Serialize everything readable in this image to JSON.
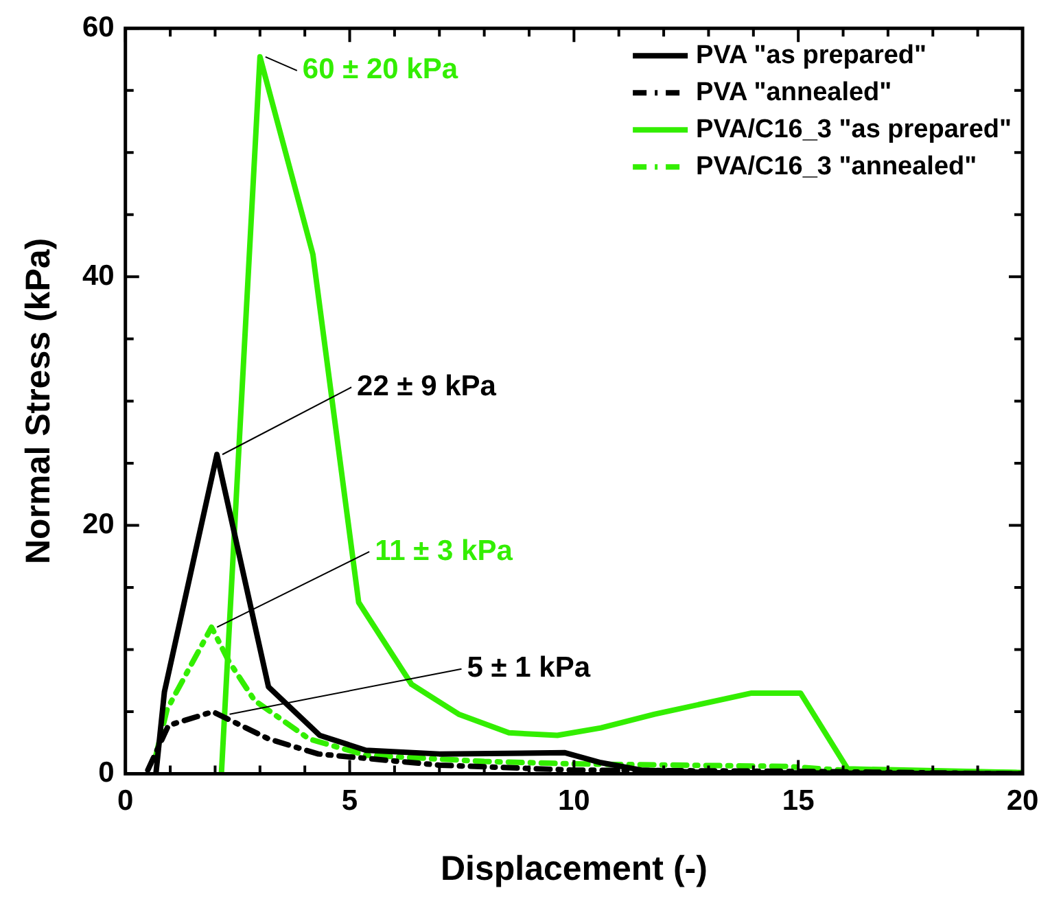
{
  "chart_data": {
    "type": "line",
    "xlabel": "Displacement (-)",
    "ylabel": "Normal Stress (kPa)",
    "xlim": [
      0,
      20
    ],
    "xticks": [
      0,
      {
        "value": 1,
        "label": null
      },
      {
        "value": 2,
        "label": null
      },
      {
        "value": 3,
        "label": null
      },
      {
        "value": 4,
        "label": null
      },
      5,
      {
        "value": 6,
        "label": null
      },
      {
        "value": 7,
        "label": null
      },
      {
        "value": 8,
        "label": null
      },
      {
        "value": 9,
        "label": null
      },
      10,
      {
        "value": 11,
        "label": null
      },
      {
        "value": 12,
        "label": null
      },
      {
        "value": 13,
        "label": null
      },
      {
        "value": 14,
        "label": null
      },
      15,
      {
        "value": 16,
        "label": null
      },
      {
        "value": 17,
        "label": null
      },
      {
        "value": 18,
        "label": null
      },
      {
        "value": 19,
        "label": null
      },
      20
    ],
    "ylim": [
      0,
      60
    ],
    "yticks": [
      0,
      {
        "value": 5,
        "label": null
      },
      {
        "value": 10,
        "label": null
      },
      {
        "value": 15,
        "label": null
      },
      20,
      {
        "value": 25,
        "label": null
      },
      {
        "value": 30,
        "label": null
      },
      {
        "value": 35,
        "label": null
      },
      40,
      {
        "value": 45,
        "label": null
      },
      {
        "value": 50,
        "label": null
      },
      {
        "value": 55,
        "label": null
      },
      60
    ],
    "legend": "top right",
    "marker": "none",
    "grid": false,
    "series": [
      {
        "name": "PVA \"as prepared\"",
        "color": "#000000",
        "line_style": "solid",
        "x": [
          0.68,
          0.87,
          2.04,
          3.19,
          4.33,
          5.36,
          7,
          9.8,
          10.6,
          11.5,
          13,
          20
        ],
        "values": [
          0,
          6.6,
          25.7,
          7,
          3.1,
          1.9,
          1.6,
          1.7,
          0.9,
          0.3,
          0.1,
          0
        ]
      },
      {
        "name": "PVA \"annealed\"",
        "color": "#000000",
        "line_style": "dashdot",
        "x": [
          0.5,
          0.96,
          1.95,
          3.2,
          4.3,
          7,
          10,
          15,
          20
        ],
        "values": [
          0.3,
          3.9,
          5,
          2.8,
          1.6,
          0.7,
          0.3,
          0.2,
          0
        ]
      },
      {
        "name": "PVA/C16_3 \"as prepared\"",
        "color": "#33ee00",
        "line_style": "solid",
        "x": [
          2.14,
          3,
          4.18,
          5.2,
          6.38,
          7.43,
          8.55,
          9.63,
          10.6,
          11.8,
          13.96,
          15.05,
          16.1,
          20
        ],
        "values": [
          0,
          57.7,
          41.8,
          13.8,
          7.2,
          4.8,
          3.3,
          3.1,
          3.7,
          4.8,
          6.5,
          6.5,
          0.4,
          0.1
        ]
      },
      {
        "name": "PVA/C16_3 \"annealed\"",
        "color": "#33ee00",
        "line_style": "dashdot",
        "x": [
          0.68,
          0.93,
          1.92,
          2.3,
          2.88,
          4.1,
          5.36,
          8,
          10,
          14.7,
          16,
          20
        ],
        "values": [
          1.5,
          5.2,
          11.8,
          9.1,
          5.9,
          2.8,
          1.5,
          1,
          0.8,
          0.6,
          0.3,
          0.1
        ]
      }
    ],
    "annotations": [
      {
        "text": "60 ± 20 kPa",
        "x": 3,
        "y": 57.7
      },
      {
        "text": "22 ± 9 kPa",
        "x": 2.04,
        "y": 25.7
      },
      {
        "text": "11 ± 3 kPa",
        "x": 1.92,
        "y": 11.8
      },
      {
        "text": "5 ± 1 kPa",
        "x": 2.2,
        "y": 4.8
      }
    ]
  }
}
